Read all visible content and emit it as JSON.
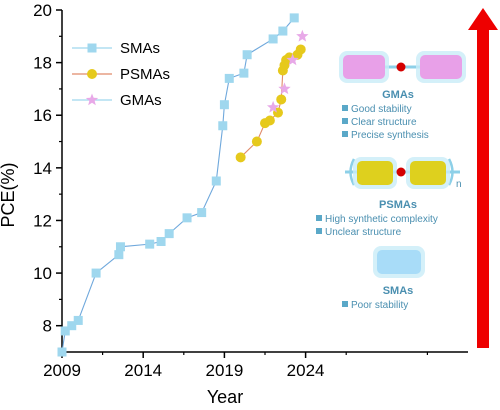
{
  "chart_data": {
    "type": "scatter",
    "xlabel": "Year",
    "ylabel": "PCE(%)",
    "xlim": [
      2009,
      2034
    ],
    "ylim": [
      7,
      20
    ],
    "x_ticks": [
      "2009",
      "2014",
      "2019",
      "2024"
    ],
    "y_ticks": [
      "8",
      "10",
      "12",
      "14",
      "16",
      "18",
      "20"
    ],
    "grid": false,
    "legend_position": "top-left",
    "series": [
      {
        "name": "SMAs",
        "color": "#9fd7ee",
        "marker": "square",
        "line": true,
        "x": [
          2009.0,
          2009.2,
          2009.6,
          2010.0,
          2011.1,
          2012.5,
          2012.6,
          2014.4,
          2015.1,
          2015.6,
          2016.7,
          2017.6,
          2018.5,
          2018.9,
          2019.0,
          2019.3,
          2020.2,
          2020.4,
          2022.0,
          2022.6,
          2023.3
        ],
        "y": [
          7.0,
          7.8,
          8.0,
          8.2,
          10.0,
          10.7,
          11.0,
          11.1,
          11.2,
          11.5,
          12.1,
          12.3,
          13.5,
          15.6,
          16.4,
          17.4,
          17.6,
          18.3,
          18.9,
          19.2,
          19.7
        ]
      },
      {
        "name": "PSMAs",
        "color": "#e6c91c",
        "marker": "circle",
        "line": true,
        "x": [
          2020.0,
          2021.0,
          2021.5,
          2021.8,
          2022.3,
          2022.5,
          2022.6,
          2022.7,
          2022.8,
          2023.0,
          2023.5,
          2023.7
        ],
        "y": [
          14.4,
          15.0,
          15.7,
          15.8,
          16.1,
          16.6,
          17.7,
          17.9,
          18.1,
          18.2,
          18.3,
          18.5
        ]
      },
      {
        "name": "GMAs",
        "color": "#e8a9e8",
        "marker": "star",
        "line": false,
        "x": [
          2022.0,
          2022.7,
          2023.2,
          2023.8
        ],
        "y": [
          16.3,
          17.0,
          18.1,
          19.0
        ]
      }
    ],
    "annotations": [
      {
        "title": "GMAs",
        "items": [
          "Good stability",
          "Clear structure",
          "Precise synthesis"
        ],
        "subscript": ""
      },
      {
        "title": "PSMAs",
        "items": [
          "High synthetic complexity",
          "Unclear structure"
        ],
        "subscript": "n"
      },
      {
        "title": "SMAs",
        "items": [
          "Poor stability"
        ],
        "subscript": ""
      }
    ],
    "colors": {
      "axis": "#000000",
      "arrow": "#ee0000",
      "annotation_text": "#4a8fb0",
      "bullet": "#5aa8c8",
      "gma_block": "#e8a0e8",
      "psma_block": "#ded01e",
      "sma_block": "#a8dcf8",
      "linker_dot": "#d40000"
    }
  }
}
